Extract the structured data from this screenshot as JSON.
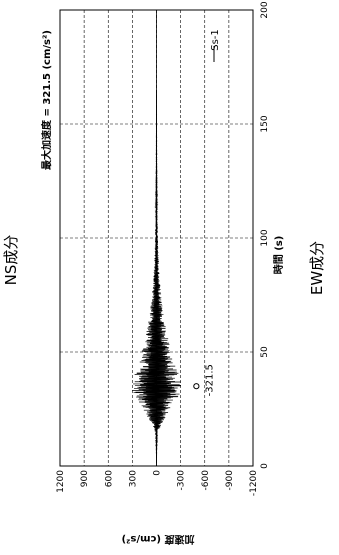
{
  "page": {
    "left_title": "NS成分",
    "right_title": "EW成分"
  },
  "chart_data": {
    "type": "line",
    "orientation": "rotated-90-clockwise",
    "title": "最大加速度 = 321.5 (cm/s²)",
    "xlabel": "時間 (s)",
    "ylabel": "加速度 (cm/s²)",
    "xlim": [
      0,
      200
    ],
    "ylim": [
      -1200,
      1200
    ],
    "x_ticks": [
      0,
      50,
      100,
      150,
      200
    ],
    "x_tick_labels": [
      "0",
      "50",
      "100",
      "150",
      "200"
    ],
    "y_ticks": [
      1200,
      900,
      600,
      300,
      0,
      -300,
      -600,
      -900,
      -1200
    ],
    "y_tick_labels": [
      "1200",
      "900",
      "600",
      "300",
      "0",
      "-300",
      "-600",
      "-900",
      "-1200"
    ],
    "grid": true,
    "legend": {
      "position": "top-right",
      "entries": [
        "Ss-1"
      ]
    },
    "peak_annotation": {
      "label": "-321.5",
      "x": 35,
      "y": -321.5
    },
    "series": [
      {
        "name": "Ss-1",
        "color": "#000000",
        "envelope": [
          [
            0,
            0
          ],
          [
            10,
            5
          ],
          [
            15,
            20
          ],
          [
            20,
            90
          ],
          [
            25,
            170
          ],
          [
            28,
            230
          ],
          [
            30,
            270
          ],
          [
            32,
            300
          ],
          [
            35,
            321.5
          ],
          [
            38,
            300
          ],
          [
            40,
            280
          ],
          [
            43,
            250
          ],
          [
            46,
            220
          ],
          [
            50,
            190
          ],
          [
            55,
            150
          ],
          [
            60,
            120
          ],
          [
            65,
            95
          ],
          [
            70,
            75
          ],
          [
            75,
            60
          ],
          [
            80,
            45
          ],
          [
            85,
            35
          ],
          [
            90,
            28
          ],
          [
            95,
            22
          ],
          [
            100,
            18
          ],
          [
            105,
            15
          ],
          [
            110,
            12
          ],
          [
            115,
            8
          ],
          [
            120,
            6
          ],
          [
            130,
            4
          ],
          [
            140,
            3
          ],
          [
            150,
            2
          ],
          [
            160,
            1.5
          ],
          [
            164,
            1
          ],
          [
            200,
            0
          ]
        ]
      }
    ]
  }
}
